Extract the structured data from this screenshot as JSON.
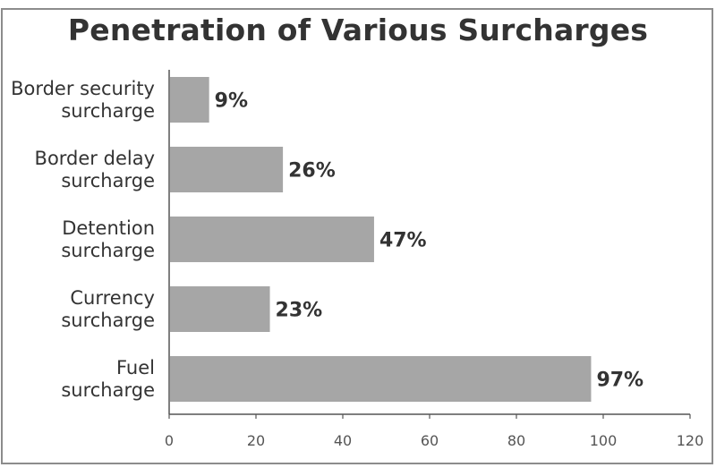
{
  "chart_data": {
    "type": "bar",
    "orientation": "horizontal",
    "title": "Penetration of Various Surcharges",
    "categories": [
      [
        "Border security",
        "surcharge"
      ],
      [
        "Border delay",
        "surcharge"
      ],
      [
        "Detention",
        "surcharge"
      ],
      [
        "Currency",
        "surcharge"
      ],
      [
        "Fuel",
        "surcharge"
      ]
    ],
    "values": [
      9,
      26,
      47,
      23,
      97
    ],
    "value_labels": [
      "9%",
      "26%",
      "47%",
      "23%",
      "97%"
    ],
    "xlim": [
      0,
      120
    ],
    "xticks": [
      "0",
      "20",
      "40",
      "60",
      "80",
      "100",
      "120"
    ],
    "xlabel": "",
    "ylabel": "",
    "grid": false,
    "legend": "none",
    "bar_color": "#a6a6a6"
  }
}
